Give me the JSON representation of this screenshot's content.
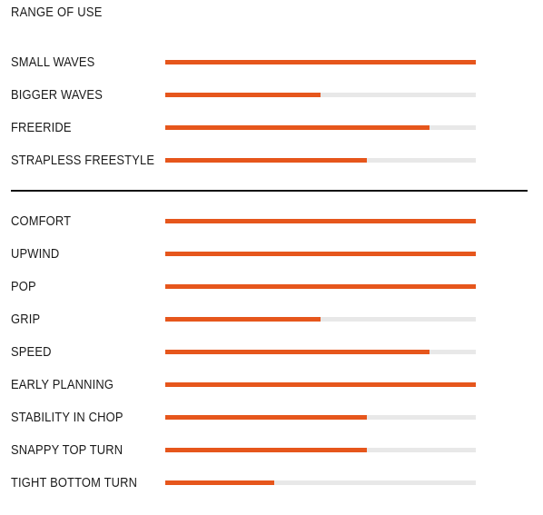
{
  "title": "RANGE OF USE",
  "colors": {
    "accent": "#e6561c",
    "track": "#e8e8e8",
    "text": "#1a1a1a"
  },
  "sections": [
    {
      "items": [
        {
          "label": "SMALL WAVES",
          "value": 1.0
        },
        {
          "label": "BIGGER WAVES",
          "value": 0.5
        },
        {
          "label": "FREERIDE",
          "value": 0.85
        },
        {
          "label": "STRAPLESS FREESTYLE",
          "value": 0.65
        }
      ]
    },
    {
      "items": [
        {
          "label": "COMFORT",
          "value": 1.0
        },
        {
          "label": "UPWIND",
          "value": 1.0
        },
        {
          "label": "POP",
          "value": 1.0
        },
        {
          "label": "GRIP",
          "value": 0.5
        },
        {
          "label": "SPEED",
          "value": 0.85
        },
        {
          "label": "EARLY PLANNING",
          "value": 1.0
        },
        {
          "label": "STABILITY IN CHOP",
          "value": 0.65
        },
        {
          "label": "SNAPPY TOP TURN",
          "value": 0.65
        },
        {
          "label": "TIGHT BOTTOM TURN",
          "value": 0.35
        }
      ]
    }
  ]
}
